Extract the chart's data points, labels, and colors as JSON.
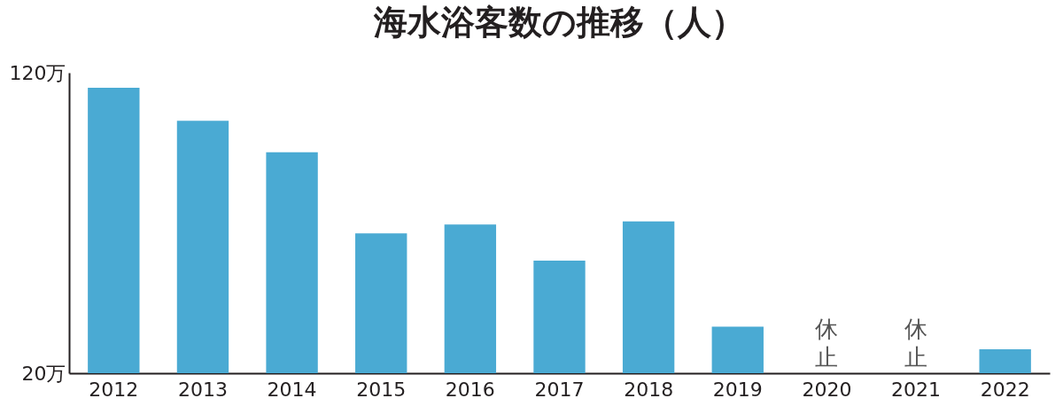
{
  "chart_data": {
    "type": "bar",
    "title": "海水浴客数の推移（人）",
    "categories": [
      "2012",
      "2013",
      "2014",
      "2015",
      "2016",
      "2017",
      "2018",
      "2019",
      "2020",
      "2021",
      "2022"
    ],
    "values": [
      115,
      104,
      93.5,
      66.5,
      69.5,
      57.5,
      70.5,
      35.5,
      null,
      null,
      28
    ],
    "color": "#4aaad3",
    "ylim": [
      20,
      120
    ],
    "yticks": [
      {
        "value": 20,
        "label": "20万"
      },
      {
        "value": 120,
        "label": "120万"
      }
    ],
    "annotations": [
      "休止",
      "休止"
    ],
    "grid": false
  }
}
